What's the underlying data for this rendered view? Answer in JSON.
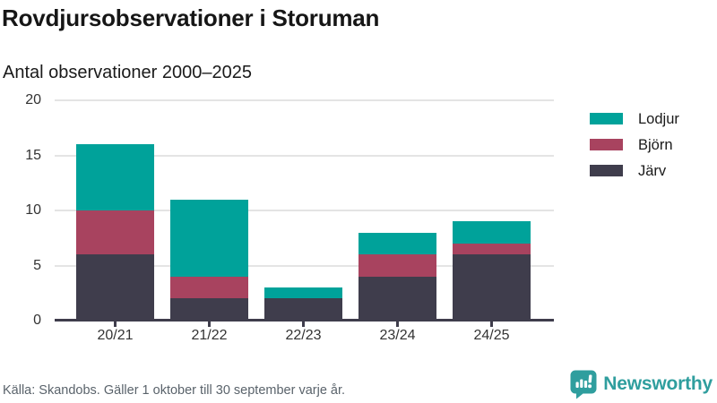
{
  "header": {
    "title": "Rovdjursobservationer i Storuman",
    "subtitle": "Antal observationer 2000–2025"
  },
  "chart_data": {
    "type": "bar",
    "stacked": true,
    "title": "Rovdjursobservationer i Storuman",
    "subtitle": "Antal observationer 2000–2025",
    "categories": [
      "20/21",
      "21/22",
      "22/23",
      "23/24",
      "24/25"
    ],
    "series": [
      {
        "name": "Järv",
        "color": "#3f3d4c",
        "values": [
          6,
          2,
          2,
          4,
          6
        ]
      },
      {
        "name": "Björn",
        "color": "#a8435f",
        "values": [
          4,
          2,
          0,
          2,
          1
        ]
      },
      {
        "name": "Lodjur",
        "color": "#00a29a",
        "values": [
          6,
          7,
          1,
          2,
          2
        ]
      }
    ],
    "totals": [
      16,
      11,
      3,
      8,
      9
    ],
    "yticks": [
      0,
      5,
      10,
      15,
      20
    ],
    "ylim": [
      0,
      20
    ],
    "xlabel": "",
    "ylabel": "",
    "grid": true,
    "legend": {
      "position": "right",
      "order": [
        "Lodjur",
        "Björn",
        "Järv"
      ]
    }
  },
  "footer": {
    "source": "Källa: Skandobs. Gäller 1 oktober till 30 september varje år.",
    "brand": "Newsworthy"
  },
  "colors": {
    "lodjur_teal": "#00a29a",
    "bjorn_maroon": "#a8435f",
    "jarv_dark": "#3f3d4c",
    "gridline": "#e4e4e4",
    "axis": "#3f3d4c",
    "brand_teal": "#2f9e9e"
  }
}
